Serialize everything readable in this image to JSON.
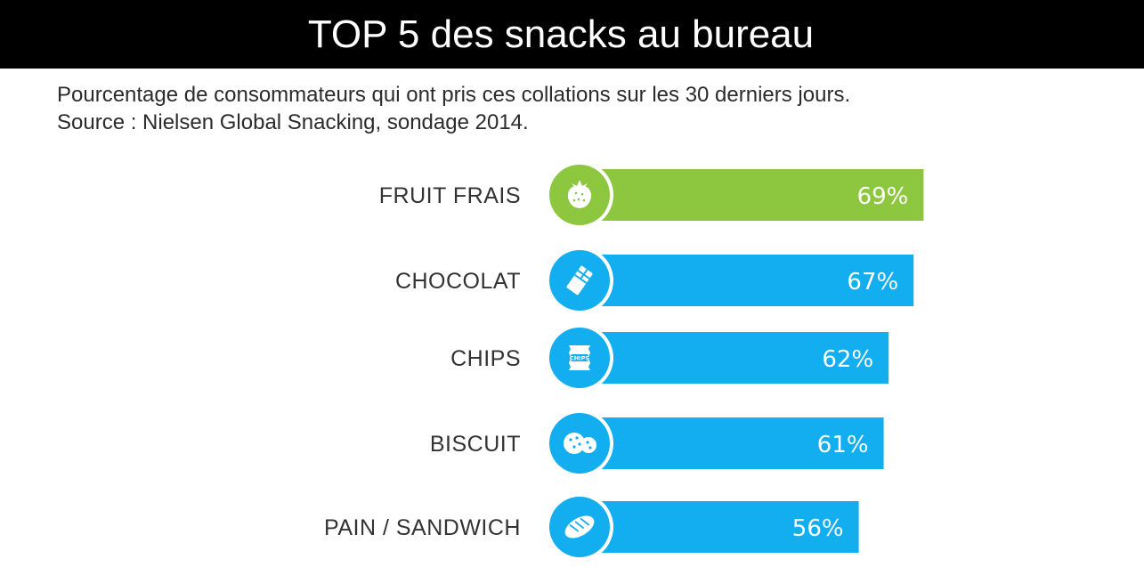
{
  "header": {
    "title": "TOP 5 des snacks au bureau",
    "subtitle_line1": "Pourcentage de consommateurs qui ont pris ces collations sur les 30 derniers jours.",
    "subtitle_line2": "Source : Nielsen Global Snacking, sondage 2014."
  },
  "colors": {
    "title_bar": "#000000",
    "highlight": "#8dc63f",
    "bar": "#13aef0"
  },
  "chart_data": {
    "type": "bar",
    "orientation": "horizontal",
    "categories": [
      "FRUIT FRAIS",
      "CHOCOLAT",
      "CHIPS",
      "BISCUIT",
      "PAIN / SANDWICH"
    ],
    "values": [
      69,
      67,
      62,
      61,
      56
    ],
    "value_labels": [
      "69%",
      "67%",
      "62%",
      "61%",
      "56%"
    ],
    "icons": [
      "strawberry-icon",
      "chocolate-bar-icon",
      "chips-bag-icon",
      "cookies-icon",
      "bread-icon"
    ],
    "icon_text": {
      "chips": "CHIPS"
    },
    "highlight_index": 0,
    "xlim": [
      0,
      100
    ],
    "grid": false,
    "legend": "none"
  }
}
